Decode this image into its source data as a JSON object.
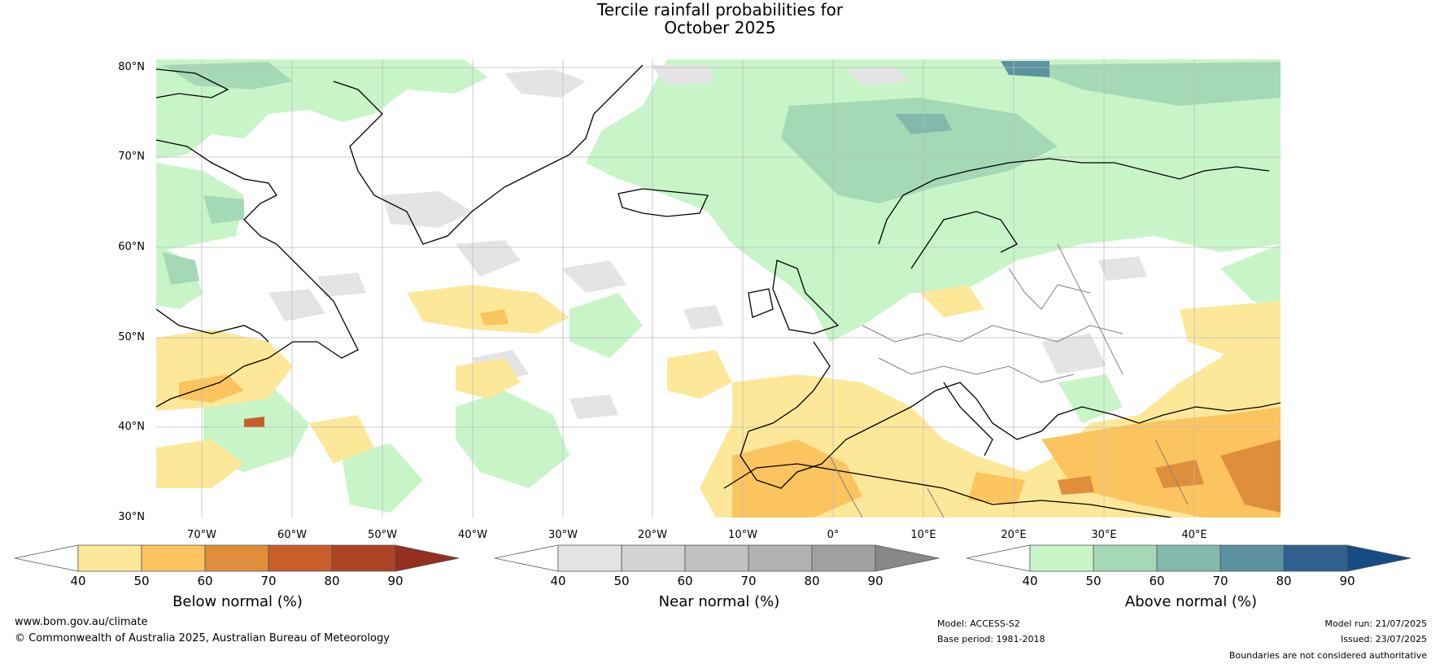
{
  "title": {
    "line1": "Tercile rainfall probabilities for",
    "line2": "October 2025"
  },
  "map": {
    "lat_labels": [
      "80°N",
      "70°N",
      "60°N",
      "50°N",
      "40°N",
      "30°N"
    ],
    "lon_labels": [
      "70°W",
      "60°W",
      "50°W",
      "40°W",
      "30°W",
      "20°W",
      "10°W",
      "0°",
      "10°E",
      "20°E",
      "30°E",
      "40°E"
    ],
    "colors": {
      "below": [
        "#fde89a",
        "#fcc45f",
        "#e08e3c",
        "#c85f2a",
        "#ad4424",
        "#94301f"
      ],
      "near": [
        "#e4e4e4",
        "#d3d3d3",
        "#c2c2c2",
        "#b2b2b2",
        "#a0a0a0",
        "#888888"
      ],
      "above": [
        "#c7f5c8",
        "#a5d8b5",
        "#82b9ab",
        "#5a92a0",
        "#2e6190",
        "#174b83"
      ],
      "coast": "#000000",
      "border": "#808080"
    }
  },
  "colorbars": [
    {
      "id": "below",
      "label": "Below normal (%)",
      "ticks": [
        "40",
        "50",
        "60",
        "70",
        "80",
        "90"
      ]
    },
    {
      "id": "near",
      "label": "Near normal (%)",
      "ticks": [
        "40",
        "50",
        "60",
        "70",
        "80",
        "90"
      ]
    },
    {
      "id": "above",
      "label": "Above normal (%)",
      "ticks": [
        "40",
        "50",
        "60",
        "70",
        "80",
        "90"
      ]
    }
  ],
  "footer": {
    "website": "www.bom.gov.au/climate",
    "copyright": "© Commonwealth of Australia 2025, Australian Bureau of Meteorology",
    "model": "Model: ACCESS-S2",
    "base_period": "Base period: 1981-2018",
    "model_run": "Model run: 21/07/2025",
    "issued": "Issued: 23/07/2025",
    "disclaimer": "Boundaries are not considered authoritative"
  }
}
